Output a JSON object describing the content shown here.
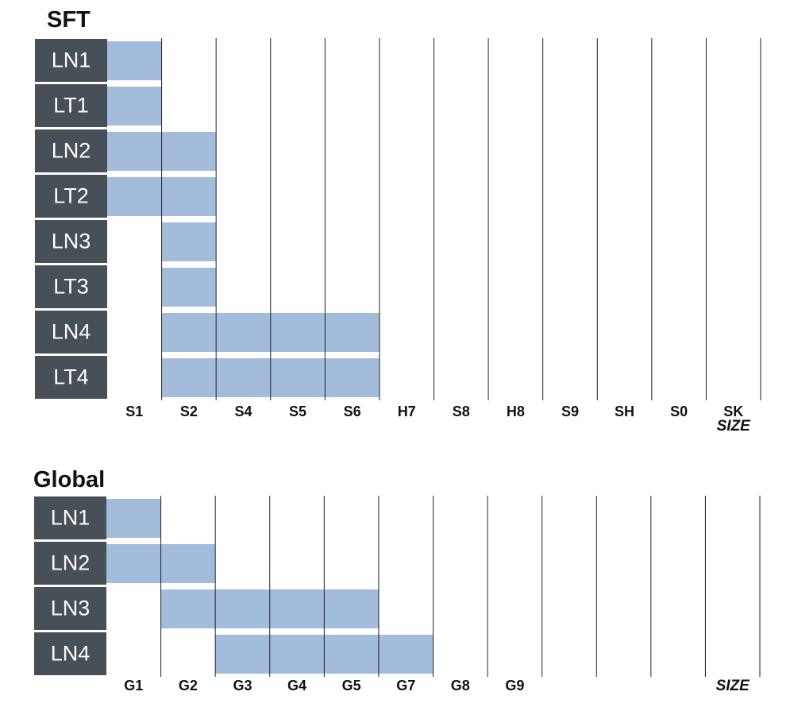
{
  "colors": {
    "label_bg": "#474f57",
    "bar": "#a3bcdb",
    "grid": "#222222",
    "text": "#111111"
  },
  "chart_data": [
    {
      "type": "gantt",
      "title": "SFT",
      "rows": [
        "LN1",
        "LT1",
        "LN2",
        "LT2",
        "LN3",
        "LT3",
        "LN4",
        "LT4"
      ],
      "columns": [
        "S1",
        "S2",
        "S4",
        "S5",
        "S6",
        "H7",
        "S8",
        "H8",
        "S9",
        "SH",
        "S0",
        "SK"
      ],
      "xlabel": "SIZE",
      "spans": [
        {
          "row": "LN1",
          "from": "S1",
          "to": "S1"
        },
        {
          "row": "LT1",
          "from": "S1",
          "to": "S1"
        },
        {
          "row": "LN2",
          "from": "S1",
          "to": "S2"
        },
        {
          "row": "LT2",
          "from": "S1",
          "to": "S2"
        },
        {
          "row": "LN3",
          "from": "S2",
          "to": "S2"
        },
        {
          "row": "LT3",
          "from": "S2",
          "to": "S2"
        },
        {
          "row": "LN4",
          "from": "S2",
          "to": "S6"
        },
        {
          "row": "LT4",
          "from": "S2",
          "to": "S6"
        }
      ]
    },
    {
      "type": "gantt",
      "title": "Global",
      "rows": [
        "LN1",
        "LN2",
        "LN3",
        "LN4"
      ],
      "columns": [
        "G1",
        "G2",
        "G3",
        "G4",
        "G5",
        "G7",
        "G8",
        "G9",
        "",
        "",
        "",
        ""
      ],
      "xlabel": "SIZE",
      "spans": [
        {
          "row": "LN1",
          "from": "G1",
          "to": "G1"
        },
        {
          "row": "LN2",
          "from": "G1",
          "to": "G2"
        },
        {
          "row": "LN3",
          "from": "G2",
          "to": "G5"
        },
        {
          "row": "LN4",
          "from": "G3",
          "to": "G7"
        }
      ]
    }
  ]
}
